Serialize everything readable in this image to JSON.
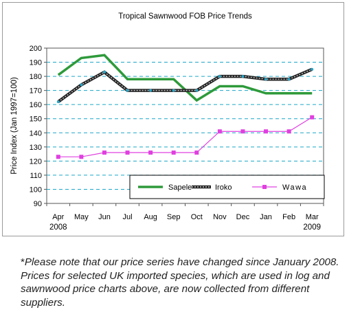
{
  "chart_data": {
    "type": "line",
    "title": "Tropical Sawnwood FOB Price Trends",
    "ylabel": "Price Index (Jan 1997=100)",
    "xlabel": "",
    "categories": [
      "Apr",
      "May",
      "Jun",
      "Jul",
      "Aug",
      "Sep",
      "Oct",
      "Nov",
      "Dec",
      "Jan",
      "Feb",
      "Mar"
    ],
    "year_labels": [
      {
        "category_index": 0,
        "text": "2008"
      },
      {
        "category_index": 11,
        "text": "2009"
      }
    ],
    "ylim": [
      90,
      200
    ],
    "yticks": [
      90,
      100,
      110,
      120,
      130,
      140,
      150,
      160,
      170,
      180,
      190,
      200
    ],
    "grid": true,
    "legend_position": "bottom-right",
    "series": [
      {
        "name": "Sapele",
        "color": "#2e9a3a",
        "values": [
          181,
          193,
          195,
          178,
          178,
          178,
          163,
          173,
          173,
          168,
          168,
          168
        ]
      },
      {
        "name": "Iroko",
        "color": "#333333",
        "values": [
          162,
          174,
          183,
          170,
          170,
          170,
          170,
          180,
          180,
          178,
          178,
          185
        ]
      },
      {
        "name": "Wawa",
        "color": "#e040e0",
        "values": [
          123,
          123,
          126,
          126,
          126,
          126,
          126,
          141,
          141,
          141,
          141,
          151
        ]
      }
    ]
  },
  "footnote": {
    "star": "*",
    "text": "Please note that our price series have changed since January 2008. Prices for selected UK imported species, which are used in log and sawnwood price charts above, are now collected from different suppliers."
  },
  "legend_labels": [
    "Sapele",
    "Iroko",
    "Wawa"
  ]
}
